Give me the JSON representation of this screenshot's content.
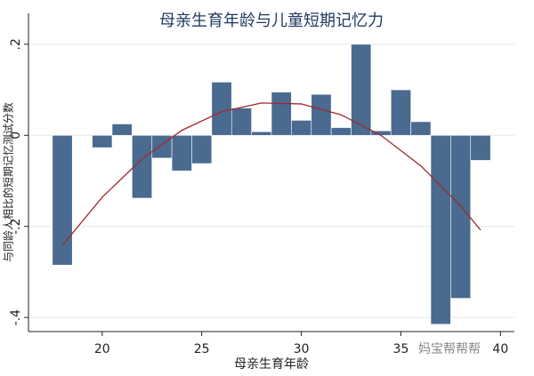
{
  "chart_data": {
    "type": "bar",
    "title": "母亲生育年龄与儿童短期记忆力",
    "x_label": "母亲生育年龄",
    "y_label": "与同龄人相比的短期记忆测试分数",
    "watermark": "妈宝帮帮帮",
    "x": [
      18,
      19,
      20,
      21,
      22,
      23,
      24,
      25,
      26,
      27,
      28,
      29,
      30,
      31,
      32,
      33,
      34,
      35,
      36,
      37,
      38,
      39
    ],
    "series": [
      {
        "type": "bar",
        "color": "#4a6a8f",
        "values": [
          -0.285,
          null,
          -0.027,
          0.025,
          -0.138,
          -0.05,
          -0.078,
          -0.062,
          0.117,
          0.06,
          0.008,
          0.095,
          0.033,
          0.09,
          0.017,
          0.2,
          0.01,
          0.1,
          0.03,
          -0.415,
          -0.358,
          -0.055
        ]
      },
      {
        "type": "line",
        "color": "#a0282d",
        "x": [
          18,
          20,
          22,
          24,
          26,
          28,
          30,
          32,
          34,
          36,
          38,
          39
        ],
        "values": [
          -0.242,
          -0.136,
          -0.052,
          0.011,
          0.052,
          0.071,
          0.069,
          0.045,
          0.0,
          -0.067,
          -0.155,
          -0.208
        ]
      }
    ],
    "xlim": [
      16.3,
      40.7
    ],
    "ylim": [
      -0.431,
      0.268
    ],
    "xticks": [
      20,
      25,
      30,
      35,
      40
    ],
    "yticks": [
      {
        "value": 0.2,
        "label": ".2"
      },
      0,
      {
        "value": -0.2,
        "label": "-.2"
      },
      {
        "value": -0.4,
        "label": "-.4"
      }
    ],
    "grid": true
  }
}
